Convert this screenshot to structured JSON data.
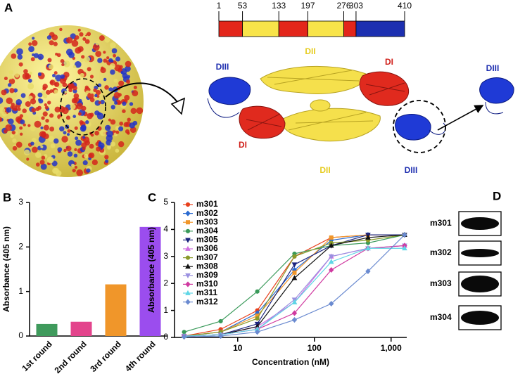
{
  "panel_a": {
    "label": "A",
    "domain_map": {
      "ticks": [
        1,
        53,
        133,
        197,
        276,
        303,
        410
      ],
      "segment_colors": [
        "#e3261b",
        "#f8e44a",
        "#e3261b",
        "#f8e44a",
        "#e3261b",
        "#1c2fb0"
      ],
      "range": [
        1,
        410
      ]
    },
    "structure_labels": [
      "DIII",
      "DII",
      "DI",
      "DI",
      "DII",
      "DIII",
      "DIII"
    ]
  },
  "chart_data": [
    {
      "type": "bar",
      "panel_label": "B",
      "ylabel": "Absorbance (405 nm)",
      "categories": [
        "1st round",
        "2nd round",
        "3rd round",
        "4th round"
      ],
      "values": [
        0.27,
        0.32,
        1.16,
        2.45
      ],
      "colors": [
        "#3f9a5c",
        "#e3448c",
        "#f0962a",
        "#9b4dee"
      ],
      "ylim": [
        0,
        3
      ],
      "yticks": [
        0,
        1,
        2,
        3
      ]
    },
    {
      "type": "line",
      "panel_label": "C",
      "xlabel": "Concentration (nM)",
      "ylabel": "Absorbance (405 nm)",
      "xscale": "log",
      "x": [
        2,
        6,
        18,
        55,
        166,
        500,
        1500
      ],
      "xlim": [
        1.5,
        1600
      ],
      "xticks": [
        10,
        100,
        {
          "value": 1000,
          "label": "1,000"
        }
      ],
      "ylim": [
        0,
        5
      ],
      "yticks": [
        0,
        1,
        2,
        3,
        4,
        5
      ],
      "legend": "upper-left",
      "series": [
        {
          "name": "m301",
          "color": "#e8401c",
          "marker": "circle",
          "values": [
            0.05,
            0.3,
            1.0,
            3.0,
            3.7,
            3.8,
            3.8
          ]
        },
        {
          "name": "m302",
          "color": "#2a6ad0",
          "marker": "diamond",
          "values": [
            0.05,
            0.2,
            0.9,
            2.5,
            3.6,
            3.8,
            3.8
          ]
        },
        {
          "name": "m303",
          "color": "#f0962a",
          "marker": "square",
          "values": [
            0.05,
            0.2,
            0.8,
            2.4,
            3.7,
            3.8,
            3.8
          ]
        },
        {
          "name": "m304",
          "color": "#3a9a5a",
          "marker": "circle",
          "values": [
            0.2,
            0.6,
            1.7,
            3.1,
            3.4,
            3.5,
            3.8
          ]
        },
        {
          "name": "m305",
          "color": "#1a237e",
          "marker": "triangle-down",
          "values": [
            0.05,
            0.1,
            0.5,
            2.7,
            3.4,
            3.8,
            3.8
          ]
        },
        {
          "name": "m306",
          "color": "#d070e0",
          "marker": "triangle",
          "values": [
            0.05,
            0.1,
            0.4,
            1.3,
            3.0,
            3.3,
            3.4
          ]
        },
        {
          "name": "m307",
          "color": "#8a9a2a",
          "marker": "circle",
          "values": [
            0.05,
            0.2,
            0.7,
            3.0,
            3.5,
            3.6,
            3.8
          ]
        },
        {
          "name": "m308",
          "color": "#111111",
          "marker": "triangle",
          "values": [
            0.05,
            0.1,
            0.4,
            2.2,
            3.4,
            3.7,
            3.8
          ]
        },
        {
          "name": "m309",
          "color": "#9a90e0",
          "marker": "triangle-down",
          "values": [
            0.05,
            0.1,
            0.3,
            1.4,
            3.0,
            3.3,
            3.4
          ]
        },
        {
          "name": "m310",
          "color": "#d03aa0",
          "marker": "diamond",
          "values": [
            0.05,
            0.1,
            0.3,
            0.9,
            2.5,
            3.3,
            3.4
          ]
        },
        {
          "name": "m311",
          "color": "#5fd6e6",
          "marker": "triangle",
          "values": [
            0.05,
            0.1,
            0.3,
            1.3,
            2.8,
            3.3,
            3.3
          ]
        },
        {
          "name": "m312",
          "color": "#6a8ad0",
          "marker": "diamond",
          "values": [
            0.02,
            0.05,
            0.2,
            0.65,
            1.25,
            2.45,
            3.8
          ]
        }
      ]
    }
  ],
  "panel_d": {
    "label": "D",
    "lanes": [
      "m301",
      "m302",
      "m303",
      "m304"
    ]
  }
}
